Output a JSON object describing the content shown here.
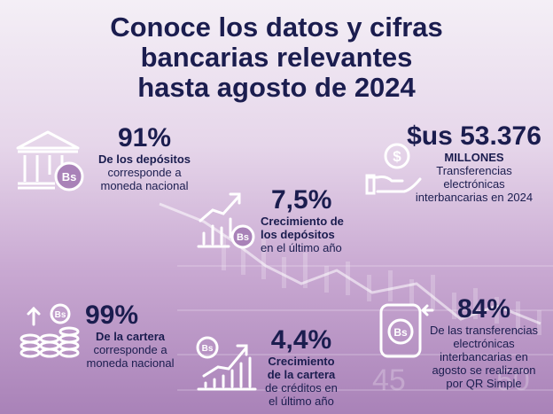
{
  "title": {
    "line1": "Conoce los datos y cifras",
    "line2": "bancarias relevantes",
    "line3": "hasta agosto de 2024"
  },
  "stats": {
    "deposits_currency": {
      "value": "91%",
      "bold": "De los depósitos",
      "line1": "corresponde a",
      "line2": "moneda nacional"
    },
    "transfers_total": {
      "value": "$us 53.376",
      "unit": "MILLONES",
      "line1": "Transferencias",
      "line2": "electrónicas",
      "line3": "interbancarias en 2024"
    },
    "deposits_growth": {
      "value": "7,5%",
      "bold1": "Crecimiento de",
      "bold2": "los depósitos",
      "line1": "en el último año"
    },
    "loans_currency": {
      "value": "99%",
      "bold": "De la cartera",
      "line1": "corresponde a",
      "line2": "moneda nacional"
    },
    "loans_growth": {
      "value": "4,4%",
      "bold1": "Crecimiento",
      "bold2": "de la cartera",
      "line1": "de créditos en",
      "line2": "el último año"
    },
    "qr_transfers": {
      "value": "84%",
      "line1": "De las transferencias",
      "line2": "electrónicas",
      "line3": "interbancarias en",
      "line4": "agosto se realizaron",
      "line5": "por QR Simple"
    }
  },
  "icons": {
    "currency_badge": "Bs",
    "dollar_sign": "$"
  },
  "colors": {
    "navy": "#1b1d4f",
    "icon_stroke": "#ffffff",
    "background_top": "#f4eff6",
    "background_bottom": "#a982b8"
  },
  "background_watermark": [
    "45",
    "50"
  ]
}
